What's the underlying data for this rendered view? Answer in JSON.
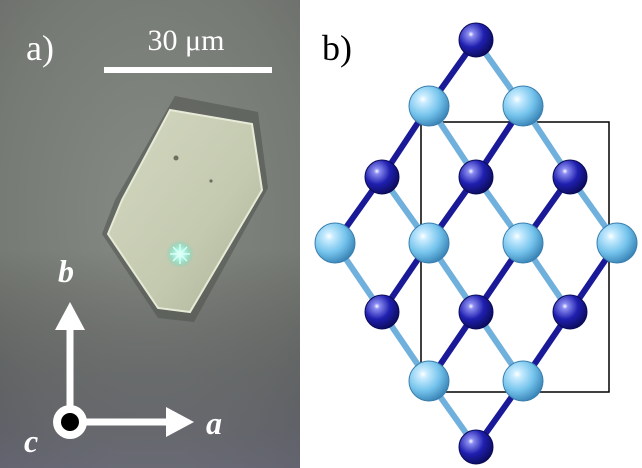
{
  "panel_a": {
    "label": "a)",
    "scale_bar_text": "30 μm",
    "axis_labels": {
      "b": "b",
      "a": "a",
      "c": "c"
    },
    "colors": {
      "background": "#7b7f79",
      "crystal": "#c9cfb5",
      "crystal_edge": "#eef2e2",
      "spark": "#b8fff0",
      "arrows": "#ffffff",
      "label": "#ffffff"
    }
  },
  "panel_b": {
    "label": "b)",
    "colors": {
      "dark_atom": "#1b1aa6",
      "light_atom": "#6ec2ee",
      "dark_bond": "#1a1a99",
      "light_bond": "#6fb0dd",
      "cell_outline": "#000000",
      "label": "#000000"
    }
  }
}
